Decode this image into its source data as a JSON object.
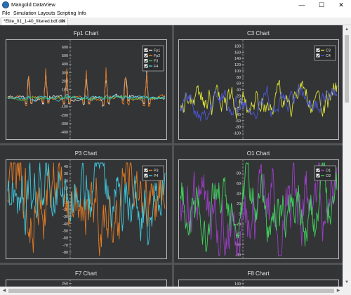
{
  "window": {
    "title": "Mangold DataView",
    "minimize_icon": "minimize-icon",
    "maximize_icon": "maximize-icon",
    "close_icon": "close-icon"
  },
  "menu": {
    "items": [
      "File",
      "Simulation",
      "Layouts",
      "Scripting",
      "Info"
    ]
  },
  "tab": {
    "label": "*Elite_01_1-40_filtered.bdf.dtlx",
    "close": "✕"
  },
  "colors": {
    "orange": "#e07b25",
    "cyan": "#3ec7dc",
    "green": "#37b54f",
    "yellow": "#d8df35",
    "blue": "#4b57d6",
    "purple": "#9a3fc2",
    "grey": "#d9d9d9",
    "bright_green": "#3fd25a"
  },
  "charts": [
    {
      "title": "Fp1 Chart",
      "chart_data": {
        "type": "line",
        "ylim": [
          -450,
          650
        ],
        "y_ticks": [
          "600",
          "500",
          "400",
          "300",
          "200",
          "100",
          "0",
          "-100",
          "-200",
          "-300",
          "-400"
        ],
        "legend": [
          "Fp1",
          "Fp2",
          "F3",
          "F4"
        ],
        "legend_position": "top-right",
        "series": [
          {
            "name": "Fp1",
            "base": 0,
            "amp": 18,
            "spike_amp": 300
          },
          {
            "name": "Fp2",
            "base": 0,
            "amp": 18,
            "spike_amp": 320
          },
          {
            "name": "F3",
            "base": 0,
            "amp": 12,
            "spike_amp": 10
          },
          {
            "name": "F4",
            "base": 0,
            "amp": 15,
            "spike_amp": 20
          }
        ]
      }
    },
    {
      "title": "C3 Chart",
      "chart_data": {
        "type": "line",
        "ylim": [
          -110,
          190
        ],
        "y_ticks": [
          "180",
          "160",
          "140",
          "120",
          "100",
          "80",
          "60",
          "40",
          "20",
          "0",
          "-20",
          "-40",
          "-60",
          "-80",
          "-100"
        ],
        "legend": [
          "C3",
          "C4"
        ],
        "legend_position": "top-right",
        "series": [
          {
            "name": "C3",
            "base": 0,
            "amp": 35
          },
          {
            "name": "C4",
            "base": 0,
            "amp": 28
          }
        ]
      }
    },
    {
      "title": "P3 Chart",
      "chart_data": {
        "type": "line",
        "ylim": [
          -85,
          45
        ],
        "y_ticks": [
          "40",
          "30",
          "20",
          "10",
          "0",
          "-10",
          "-20",
          "-30",
          "-40",
          "-50",
          "-60",
          "-70",
          "-80"
        ],
        "legend": [
          "P3",
          "P4"
        ],
        "legend_position": "top-right",
        "series": [
          {
            "name": "P3",
            "base": 0,
            "amp": 42
          },
          {
            "name": "P4",
            "base": 0,
            "amp": 34
          }
        ]
      }
    },
    {
      "title": "O1 Chart",
      "chart_data": {
        "type": "line",
        "ylim": [
          -82,
          100
        ],
        "y_ticks": [
          "80",
          "60",
          "40",
          "20",
          "0",
          "-20",
          "-40",
          "-60",
          "-80"
        ],
        "legend": [
          "O1",
          "O2"
        ],
        "legend_position": "top-right",
        "series": [
          {
            "name": "O1",
            "base": 0,
            "amp": 60
          },
          {
            "name": "O2",
            "base": 0,
            "amp": 45
          }
        ]
      }
    },
    {
      "title": "F7 Chart",
      "chart_data": {
        "type": "line",
        "y_ticks": [
          "250"
        ],
        "ylim": [
          -250,
          260
        ]
      }
    },
    {
      "title": "F8 Chart",
      "chart_data": {
        "type": "line",
        "y_ticks": [
          "140"
        ],
        "ylim": [
          -140,
          150
        ]
      }
    }
  ]
}
